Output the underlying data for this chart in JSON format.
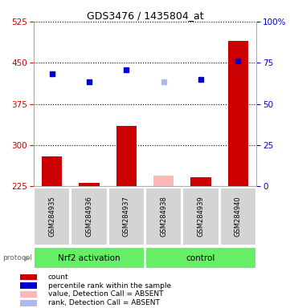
{
  "title": "GDS3476 / 1435804_at",
  "samples": [
    "GSM284935",
    "GSM284936",
    "GSM284937",
    "GSM284938",
    "GSM284939",
    "GSM284940"
  ],
  "bar_values": [
    280,
    232,
    335,
    null,
    242,
    490
  ],
  "bar_colors_present": "#cc0000",
  "bar_values_absent": [
    null,
    null,
    null,
    245,
    null,
    null
  ],
  "bar_color_absent": "#ffb6b6",
  "rank_present": [
    430,
    415,
    437,
    null,
    420,
    453
  ],
  "rank_absent": [
    null,
    null,
    null,
    415,
    null,
    null
  ],
  "rank_color_present": "#0000cc",
  "rank_color_absent": "#b0b8e8",
  "ylim_left": [
    225,
    525
  ],
  "yticks_left": [
    225,
    300,
    375,
    450,
    525
  ],
  "yticks_right": [
    0,
    25,
    50,
    75,
    100
  ],
  "ytick_labels_right": [
    "0",
    "25",
    "50",
    "75",
    "100%"
  ],
  "left_axis_color": "#cc0000",
  "right_axis_color": "#0000cc",
  "plot_bg": "#ffffff",
  "sample_box_color": "#d4d4d4",
  "group_box_color": "#66ee66",
  "legend_items": [
    {
      "label": "count",
      "color": "#cc0000"
    },
    {
      "label": "percentile rank within the sample",
      "color": "#0000cc"
    },
    {
      "label": "value, Detection Call = ABSENT",
      "color": "#ffb6b6"
    },
    {
      "label": "rank, Detection Call = ABSENT",
      "color": "#b0b8e8"
    }
  ]
}
